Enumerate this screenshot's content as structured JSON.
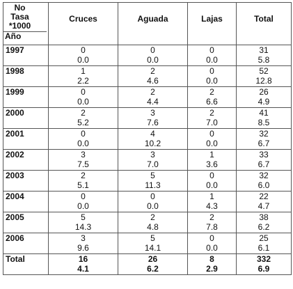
{
  "corner": {
    "line1": "No",
    "line2": "Tasa",
    "line3": "*1000",
    "line4": "Año"
  },
  "columns": [
    "Cruces",
    "Aguada",
    "Lajas",
    "Total"
  ],
  "rows": [
    {
      "year": "1997",
      "cells": [
        [
          "0",
          "0.0"
        ],
        [
          "0",
          "0.0"
        ],
        [
          "0",
          "0.0"
        ],
        [
          "31",
          "5.8"
        ]
      ]
    },
    {
      "year": "1998",
      "cells": [
        [
          "1",
          "2.2"
        ],
        [
          "2",
          "4.6"
        ],
        [
          "0",
          "0.0"
        ],
        [
          "52",
          "12.8"
        ]
      ]
    },
    {
      "year": "1999",
      "cells": [
        [
          "0",
          "0.0"
        ],
        [
          "2",
          "4.4"
        ],
        [
          "2",
          "6.6"
        ],
        [
          "26",
          "4.9"
        ]
      ]
    },
    {
      "year": "2000",
      "cells": [
        [
          "2",
          "5.2"
        ],
        [
          "3",
          "7.6"
        ],
        [
          "2",
          "7.0"
        ],
        [
          "41",
          "8.5"
        ]
      ]
    },
    {
      "year": "2001",
      "cells": [
        [
          "0",
          "0.0"
        ],
        [
          "4",
          "10.2"
        ],
        [
          "0",
          "0.0"
        ],
        [
          "32",
          "6.7"
        ]
      ]
    },
    {
      "year": "2002",
      "cells": [
        [
          "3",
          "7.5"
        ],
        [
          "3",
          "7.0"
        ],
        [
          "1",
          "3.6"
        ],
        [
          "33",
          "6.7"
        ]
      ]
    },
    {
      "year": "2003",
      "cells": [
        [
          "2",
          "5.1"
        ],
        [
          "5",
          "11.3"
        ],
        [
          "0",
          "0.0"
        ],
        [
          "32",
          "6.0"
        ]
      ]
    },
    {
      "year": "2004",
      "cells": [
        [
          "0",
          "0.0"
        ],
        [
          "0",
          "0.0"
        ],
        [
          "1",
          "4.3"
        ],
        [
          "22",
          "4.7"
        ]
      ]
    },
    {
      "year": "2005",
      "cells": [
        [
          "5",
          "14.3"
        ],
        [
          "2",
          "4.8"
        ],
        [
          "2",
          "7.8"
        ],
        [
          "38",
          "6.2"
        ]
      ]
    },
    {
      "year": "2006",
      "cells": [
        [
          "3",
          "9.6"
        ],
        [
          "5",
          "14.1"
        ],
        [
          "0",
          "0.0"
        ],
        [
          "25",
          "6.1"
        ]
      ]
    }
  ],
  "total": {
    "label": "Total",
    "cells": [
      [
        "16",
        "4.1"
      ],
      [
        "26",
        "6.2"
      ],
      [
        "8",
        "2.9"
      ],
      [
        "332",
        "6.9"
      ]
    ]
  }
}
